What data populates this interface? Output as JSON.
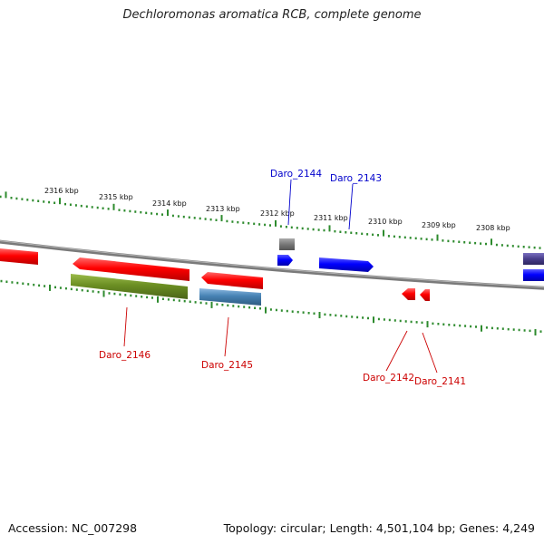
{
  "title": "Dechloromonas aromatica RCB, complete genome",
  "footer": {
    "accession": "Accession: NC_007298",
    "topology": "Topology: circular; Length: 4,501,104 bp; Genes: 4,249"
  },
  "scale_labels": [
    "2316 kbp",
    "2315 kbp",
    "2314 kbp",
    "2313 kbp",
    "2312 kbp",
    "2311 kbp",
    "2310 kbp",
    "2309 kbp",
    "2308 kbp"
  ],
  "gene_labels": {
    "daro_2144": "Daro_2144",
    "daro_2143": "Daro_2143",
    "daro_2146": "Daro_2146",
    "daro_2145": "Daro_2145",
    "daro_2142": "Daro_2142",
    "daro_2141": "Daro_2141"
  },
  "colors": {
    "backbone": "#7a7a7a",
    "tick": "#2e8b2e",
    "forward_label": "#0000cc",
    "reverse_label": "#cc0000",
    "red": "#ff0000",
    "blue": "#0000ff",
    "olive": "#6b8e23",
    "steel": "#4682b4",
    "grey": "#777777",
    "slate": "#483d8b"
  }
}
